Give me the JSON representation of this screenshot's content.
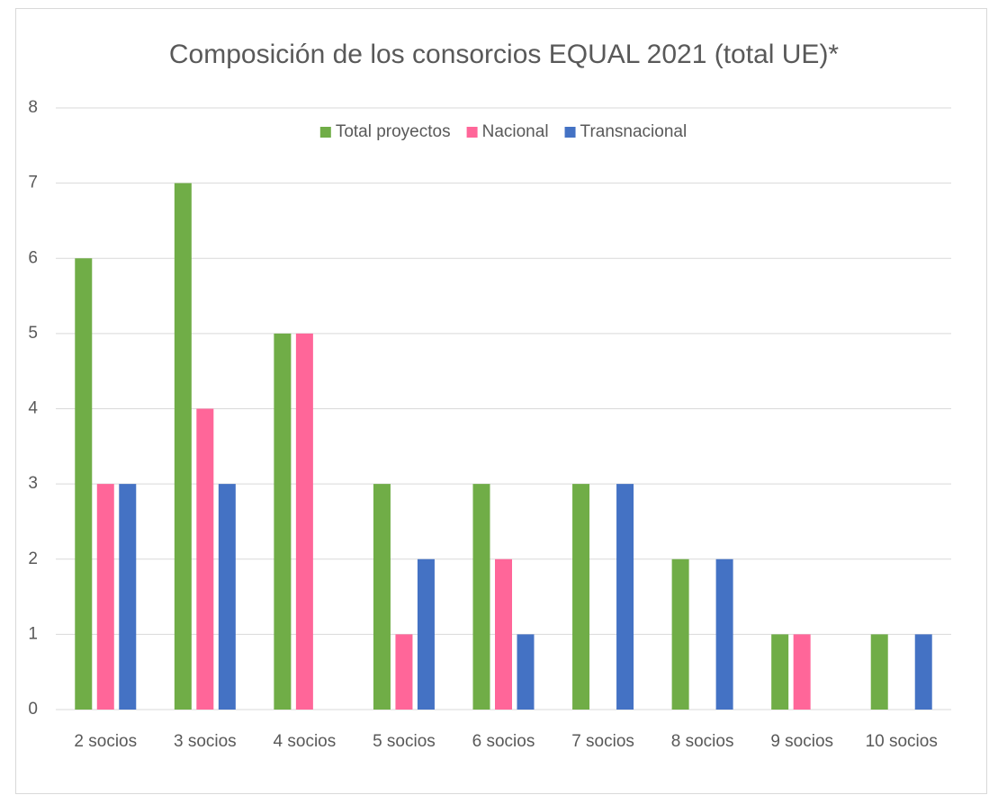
{
  "chart_data": {
    "type": "bar",
    "title": "Composición de los consorcios EQUAL 2021 (total UE)*",
    "categories": [
      "2 socios",
      "3 socios",
      "4 socios",
      "5 socios",
      "6 socios",
      "7 socios",
      "8 socios",
      "9 socios",
      "10 socios"
    ],
    "series": [
      {
        "name": "Total proyectos",
        "color": "#70ad47",
        "values": [
          6,
          7,
          5,
          3,
          3,
          3,
          2,
          1,
          1
        ]
      },
      {
        "name": "Nacional",
        "color": "#ff6699",
        "values": [
          3,
          4,
          5,
          1,
          2,
          0,
          0,
          1,
          0
        ]
      },
      {
        "name": "Transnacional",
        "color": "#4472c4",
        "values": [
          3,
          3,
          0,
          2,
          1,
          3,
          2,
          0,
          1
        ]
      }
    ],
    "ylim": [
      0,
      8
    ],
    "yticks": [
      0,
      1,
      2,
      3,
      4,
      5,
      6,
      7,
      8
    ],
    "grid": true,
    "legend": "top"
  }
}
